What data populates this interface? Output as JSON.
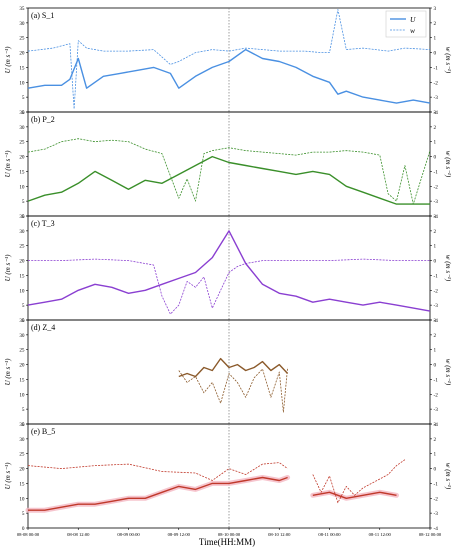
{
  "figure": {
    "xlabel": "Time(HH:MM)",
    "x_ticks": [
      "08-08 00:00",
      "08-08 12:00",
      "08-09 00:00",
      "08-09 12:00",
      "08-10 00:00",
      "08-10 12:00",
      "08-11 00:00",
      "08-11 12:00",
      "08-12 00:00"
    ]
  },
  "legend": {
    "u_label": "U",
    "w_label": "w"
  },
  "colors": {
    "S_1": "#4a90e2",
    "P_2": "#3a8f2a",
    "T_3": "#8a3fd1",
    "Z_4": "#8b5a2b",
    "B_5": "#c0392b",
    "B_5_band": "#f4b6c2",
    "vline": "#777777"
  },
  "chart_data": [
    {
      "type": "line",
      "title": "(a) S_1",
      "ylabel": "U (m s⁻¹)",
      "y2label": "w (m s⁻¹)",
      "ylim": [
        0,
        35
      ],
      "y2lim": [
        -4,
        3
      ],
      "yticks": [
        0,
        5,
        10,
        15,
        20,
        25,
        30,
        35
      ],
      "y2ticks": [
        3,
        2,
        1,
        0,
        -1,
        -2,
        -3,
        -4
      ],
      "xlim": [
        0,
        96
      ],
      "x_unit": "hours since 08-08 00:00",
      "vline_x": 48,
      "series": [
        {
          "name": "U",
          "axis": "left",
          "x": [
            0,
            4,
            8,
            10,
            12,
            14,
            18,
            22,
            26,
            30,
            34,
            36,
            40,
            44,
            48,
            52,
            56,
            60,
            64,
            68,
            72,
            74,
            76,
            80,
            84,
            88,
            92,
            96
          ],
          "y": [
            8,
            9,
            9,
            11,
            18,
            8,
            12,
            13,
            14,
            15,
            13,
            8,
            12,
            15,
            17,
            21,
            18,
            17,
            15,
            12,
            10,
            6,
            7,
            5,
            4,
            3,
            4,
            3
          ]
        },
        {
          "name": "w",
          "axis": "right",
          "x": [
            0,
            6,
            10,
            11,
            12,
            14,
            18,
            24,
            30,
            34,
            36,
            40,
            44,
            48,
            52,
            56,
            60,
            66,
            70,
            72,
            74,
            76,
            80,
            86,
            90,
            96
          ],
          "y": [
            0.1,
            0.3,
            0.6,
            -3.8,
            0.8,
            0.3,
            0.1,
            0.1,
            0.2,
            -0.8,
            -0.6,
            0.0,
            0.2,
            0.1,
            0.3,
            0.2,
            0.1,
            0.1,
            0.0,
            0.0,
            2.9,
            0.2,
            0.3,
            0.1,
            0.3,
            0.2
          ]
        }
      ]
    },
    {
      "type": "line",
      "title": "(b) P_2",
      "ylabel": "U (m s⁻¹)",
      "y2label": "w (m s⁻¹)",
      "ylim": [
        0,
        35
      ],
      "y2lim": [
        -4,
        3
      ],
      "yticks": [
        0,
        5,
        10,
        15,
        20,
        25,
        30,
        35
      ],
      "y2ticks": [
        3,
        2,
        1,
        0,
        -1,
        -2,
        -3,
        -4
      ],
      "xlim": [
        0,
        96
      ],
      "vline_x": 48,
      "series": [
        {
          "name": "U",
          "axis": "left",
          "x": [
            0,
            4,
            8,
            12,
            16,
            20,
            24,
            28,
            32,
            36,
            40,
            44,
            48,
            52,
            56,
            60,
            64,
            68,
            72,
            76,
            80,
            84,
            88,
            92,
            96
          ],
          "y": [
            5,
            7,
            8,
            11,
            15,
            12,
            9,
            12,
            11,
            14,
            17,
            20,
            18,
            17,
            16,
            15,
            14,
            15,
            14,
            10,
            8,
            6,
            4,
            4,
            4
          ]
        },
        {
          "name": "w",
          "axis": "right",
          "x": [
            0,
            4,
            8,
            12,
            16,
            20,
            24,
            28,
            32,
            36,
            38,
            40,
            42,
            44,
            48,
            52,
            56,
            60,
            64,
            68,
            72,
            76,
            80,
            84,
            86,
            88,
            90,
            92,
            96
          ],
          "y": [
            0.3,
            0.5,
            1.0,
            1.2,
            1.0,
            1.1,
            1.0,
            0.5,
            0.2,
            -2.8,
            -1.5,
            -3.0,
            0.2,
            0.4,
            0.6,
            0.4,
            0.3,
            0.2,
            0.1,
            0.3,
            0.3,
            0.4,
            0.3,
            0.1,
            -2.5,
            -3.0,
            -0.6,
            -3.2,
            0.4
          ]
        }
      ]
    },
    {
      "type": "line",
      "title": "(c) T_3",
      "ylabel": "U (m s⁻¹)",
      "y2label": "w (m s⁻¹)",
      "ylim": [
        0,
        35
      ],
      "y2lim": [
        -4,
        3
      ],
      "yticks": [
        0,
        5,
        10,
        15,
        20,
        25,
        30,
        35
      ],
      "y2ticks": [
        3,
        2,
        1,
        0,
        -1,
        -2,
        -3,
        -4
      ],
      "xlim": [
        0,
        96
      ],
      "vline_x": 48,
      "series": [
        {
          "name": "U",
          "axis": "left",
          "x": [
            0,
            4,
            8,
            12,
            16,
            20,
            24,
            28,
            32,
            36,
            40,
            44,
            48,
            52,
            56,
            60,
            64,
            68,
            72,
            76,
            80,
            84,
            88,
            92,
            96
          ],
          "y": [
            5,
            6,
            7,
            10,
            12,
            11,
            9,
            10,
            12,
            14,
            16,
            21,
            30,
            19,
            12,
            9,
            8,
            6,
            7,
            6,
            5,
            6,
            5,
            4,
            3
          ]
        },
        {
          "name": "w",
          "axis": "right",
          "x": [
            0,
            8,
            16,
            24,
            30,
            32,
            34,
            36,
            38,
            40,
            42,
            44,
            46,
            48,
            50,
            52,
            56,
            64,
            72,
            80,
            88,
            96
          ],
          "y": [
            0.0,
            0.0,
            0.1,
            0.0,
            -0.3,
            -2.4,
            -3.6,
            -3.0,
            -1.4,
            -1.8,
            -1.1,
            -3.2,
            -2.0,
            -0.8,
            -0.4,
            -0.2,
            0.0,
            0.0,
            0.0,
            0.1,
            0.0,
            0.0
          ]
        }
      ]
    },
    {
      "type": "line",
      "title": "(d) Z_4",
      "ylabel": "U (m s⁻¹)",
      "y2label": "w (m s⁻¹)",
      "ylim": [
        0,
        35
      ],
      "y2lim": [
        -4,
        3
      ],
      "yticks": [
        0,
        5,
        10,
        15,
        20,
        25,
        30,
        35
      ],
      "y2ticks": [
        3,
        2,
        1,
        0,
        -1,
        -2,
        -3,
        -4
      ],
      "xlim": [
        0,
        96
      ],
      "vline_x": 48,
      "series": [
        {
          "name": "U",
          "axis": "left",
          "x": [
            36,
            38,
            40,
            42,
            44,
            46,
            48,
            50,
            52,
            54,
            56,
            58,
            60,
            62
          ],
          "y": [
            16,
            17,
            16,
            19,
            18,
            22,
            19,
            20,
            18,
            19,
            21,
            18,
            20,
            17
          ]
        },
        {
          "name": "w",
          "axis": "right",
          "x": [
            36,
            38,
            40,
            42,
            44,
            46,
            48,
            50,
            52,
            54,
            56,
            58,
            60,
            61,
            62
          ],
          "y": [
            -0.4,
            -1.2,
            -0.8,
            -1.9,
            -1.2,
            -2.6,
            -0.6,
            -1.2,
            -2.2,
            -0.9,
            -0.3,
            -2.2,
            -0.5,
            -3.2,
            -0.2
          ]
        }
      ]
    },
    {
      "type": "line",
      "title": "(e) B_5",
      "ylabel": "U (m s⁻¹)",
      "y2label": "w (m s⁻¹)",
      "ylim": [
        0,
        35
      ],
      "y2lim": [
        -4,
        3
      ],
      "yticks": [
        0,
        5,
        10,
        15,
        20,
        25,
        30,
        35
      ],
      "y2ticks": [
        3,
        2,
        1,
        0,
        -1,
        -2,
        -3,
        -4
      ],
      "xlim": [
        0,
        96
      ],
      "vline_x": 48,
      "series": [
        {
          "name": "U",
          "axis": "left",
          "x": [
            0,
            4,
            8,
            12,
            16,
            20,
            24,
            28,
            32,
            36,
            40,
            44,
            48,
            52,
            56,
            60,
            62,
            null,
            68,
            72,
            76,
            80,
            84,
            88
          ],
          "y": [
            6,
            6,
            7,
            8,
            8,
            9,
            10,
            10,
            12,
            14,
            13,
            15,
            15,
            16,
            17,
            16,
            17,
            null,
            11,
            12,
            10,
            11,
            12,
            11
          ]
        },
        {
          "name": "w",
          "axis": "right",
          "x": [
            0,
            8,
            16,
            24,
            32,
            40,
            44,
            48,
            52,
            56,
            60,
            62,
            null,
            68,
            70,
            72,
            74,
            76,
            78,
            80,
            84,
            86,
            88,
            90
          ],
          "y": [
            0.2,
            0.0,
            0.2,
            0.3,
            -0.2,
            -0.3,
            -0.8,
            0.0,
            -0.4,
            0.3,
            0.4,
            0.0,
            null,
            -0.4,
            -1.6,
            -0.5,
            -2.3,
            -1.2,
            -1.8,
            -1.3,
            -0.7,
            -0.4,
            0.2,
            0.6
          ]
        }
      ]
    }
  ]
}
